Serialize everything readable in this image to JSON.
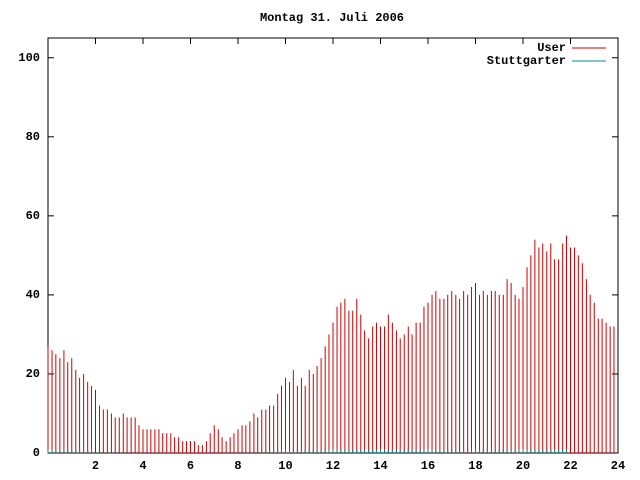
{
  "chart_data": {
    "type": "impulse",
    "title": "Montag 31. Juli 2006",
    "x": [
      0,
      0.17,
      0.33,
      0.5,
      0.67,
      0.83,
      1,
      1.17,
      1.33,
      1.5,
      1.67,
      1.83,
      2,
      2.17,
      2.33,
      2.5,
      2.67,
      2.83,
      3,
      3.17,
      3.33,
      3.5,
      3.67,
      3.83,
      4,
      4.17,
      4.33,
      4.5,
      4.67,
      4.83,
      5,
      5.17,
      5.33,
      5.5,
      5.67,
      5.83,
      6,
      6.17,
      6.33,
      6.5,
      6.67,
      6.83,
      7,
      7.17,
      7.33,
      7.5,
      7.67,
      7.83,
      8,
      8.17,
      8.33,
      8.5,
      8.67,
      8.83,
      9,
      9.17,
      9.33,
      9.5,
      9.67,
      9.83,
      10,
      10.17,
      10.33,
      10.5,
      10.67,
      10.83,
      11,
      11.17,
      11.33,
      11.5,
      11.67,
      11.83,
      12,
      12.17,
      12.33,
      12.5,
      12.67,
      12.83,
      13,
      13.17,
      13.33,
      13.5,
      13.67,
      13.83,
      14,
      14.17,
      14.33,
      14.5,
      14.67,
      14.83,
      15,
      15.17,
      15.33,
      15.5,
      15.67,
      15.83,
      16,
      16.17,
      16.33,
      16.5,
      16.67,
      16.83,
      17,
      17.17,
      17.33,
      17.5,
      17.67,
      17.83,
      18,
      18.17,
      18.33,
      18.5,
      18.67,
      18.83,
      19,
      19.17,
      19.33,
      19.5,
      19.67,
      19.83,
      20,
      20.17,
      20.33,
      20.5,
      20.67,
      20.83,
      21,
      21.17,
      21.33,
      21.5,
      21.67,
      21.83,
      22,
      22.17,
      22.33,
      22.5,
      22.67,
      22.83,
      23,
      23.17,
      23.33,
      23.5,
      23.67,
      23.83
    ],
    "series": [
      {
        "name": "User",
        "color": "#cc0000",
        "values": [
          27,
          26,
          25,
          24,
          26,
          23,
          24,
          21,
          19,
          20,
          18,
          17,
          16,
          12,
          11,
          11,
          10,
          9,
          9,
          10,
          9,
          9,
          9,
          7,
          6,
          6,
          6,
          6,
          6,
          5,
          5,
          5,
          4,
          4,
          3,
          3,
          3,
          3,
          2,
          2,
          3,
          5,
          7,
          6,
          4,
          3,
          4,
          5,
          6,
          7,
          7,
          8,
          10,
          9,
          11,
          11,
          12,
          12,
          15,
          17,
          19,
          18,
          21,
          17,
          19,
          17,
          21,
          20,
          22,
          24,
          27,
          30,
          33,
          37,
          38,
          39,
          36,
          36,
          39,
          35,
          31,
          29,
          32,
          33,
          32,
          32,
          35,
          33,
          31,
          29,
          30,
          32,
          30,
          33,
          33,
          37,
          38,
          40,
          41,
          39,
          39,
          40,
          41,
          40,
          39,
          41,
          40,
          42,
          43,
          40,
          41,
          40,
          41,
          41,
          40,
          40,
          44,
          43,
          40,
          39,
          42,
          47,
          50,
          54,
          52,
          53,
          51,
          53,
          49,
          49,
          53,
          55,
          52,
          52,
          50,
          48,
          44,
          40,
          38,
          34,
          34,
          33,
          32,
          32
        ]
      },
      {
        "name": "Stuttgarter",
        "color": "#008b8b",
        "values": [
          1,
          1,
          1,
          1,
          1,
          1,
          1,
          1,
          1,
          1,
          1,
          1,
          0,
          0,
          0,
          0,
          0,
          0,
          0,
          0,
          0,
          0,
          0,
          0,
          0,
          0,
          0,
          0,
          0,
          0,
          0,
          0,
          0,
          0,
          0,
          0,
          0,
          0,
          0,
          0,
          0,
          0,
          0,
          0,
          0,
          0,
          0,
          0,
          0,
          0,
          0,
          0,
          0,
          0,
          1,
          1,
          1,
          1,
          1,
          1,
          1,
          1,
          1,
          1,
          1,
          1,
          1,
          1,
          1,
          1,
          1,
          1,
          1,
          1,
          1,
          1,
          1,
          1,
          1,
          1,
          1,
          1,
          1,
          1,
          1,
          1,
          1,
          1,
          1,
          1,
          1,
          1,
          1,
          1,
          1,
          1,
          1,
          1,
          1,
          1,
          1,
          1,
          1,
          1,
          1,
          1,
          1,
          1,
          1,
          1,
          1,
          1,
          1,
          1,
          1,
          1,
          1,
          1,
          1,
          1,
          1,
          1,
          1,
          1,
          1,
          1,
          1,
          1,
          1,
          1,
          1,
          1,
          0,
          0,
          0,
          0,
          0,
          0,
          0,
          0,
          0,
          0,
          0,
          0
        ]
      }
    ],
    "xlim": [
      0,
      24
    ],
    "xticks": [
      2,
      4,
      6,
      8,
      10,
      12,
      14,
      16,
      18,
      20,
      22,
      24
    ],
    "ylim": [
      0,
      105
    ],
    "yticks": [
      0,
      20,
      40,
      60,
      80,
      100
    ],
    "legend": "top-right"
  }
}
